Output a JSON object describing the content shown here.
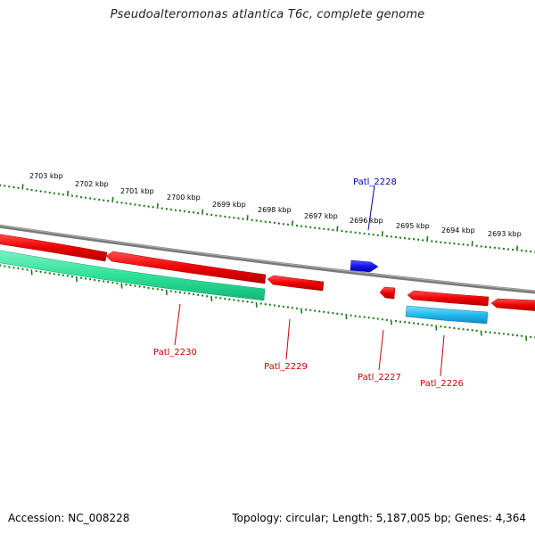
{
  "title": "Pseudoalteromonas atlantica T6c, complete genome",
  "footer": {
    "accession": "Accession: NC_008228",
    "summary": "Topology: circular; Length: 5,187,005 bp; Genes: 4,364"
  },
  "scale": {
    "labels": [
      "2703 kbp",
      "2702 kbp",
      "2701 kbp",
      "2700 kbp",
      "2699 kbp",
      "2698 kbp",
      "2697 kbp",
      "2696 kbp",
      "2695 kbp",
      "2694 kbp",
      "2693 kbp"
    ]
  },
  "genes": [
    {
      "id": "Patl_2230",
      "color": "#cc0000"
    },
    {
      "id": "Patl_2229",
      "color": "#cc0000"
    },
    {
      "id": "Patl_2228",
      "color": "#0000aa"
    },
    {
      "id": "Patl_2227",
      "color": "#cc0000"
    },
    {
      "id": "Patl_2226",
      "color": "#cc0000"
    }
  ],
  "colors": {
    "backbone": "#808080",
    "forward_gene": "#1515ee",
    "reverse_gene": "#ee0000",
    "feature_green": "#33dd99",
    "feature_cyan": "#22bbee",
    "tick": "#1a7a1a"
  }
}
